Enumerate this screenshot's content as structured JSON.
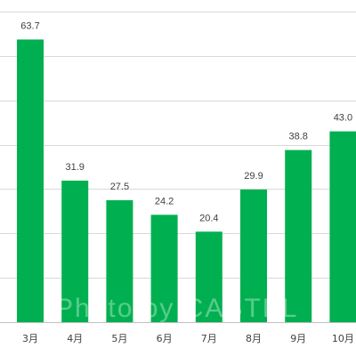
{
  "chart_data": {
    "type": "bar",
    "categories": [
      "3月",
      "4月",
      "5月",
      "6月",
      "7月",
      "8月",
      "9月",
      "10月"
    ],
    "values": [
      63.7,
      31.9,
      27.5,
      24.2,
      20.4,
      29.9,
      38.8,
      43.0
    ],
    "data_labels": [
      "63.7",
      "31.9",
      "27.5",
      "24.2",
      "20.4",
      "29.9",
      "38.8",
      "43.0"
    ],
    "title": "",
    "xlabel": "",
    "ylabel": "",
    "ylim": [
      0,
      70
    ],
    "y_grid_step": 10,
    "grid": true,
    "bar_color": "#00b050"
  },
  "watermark": {
    "text": "Photo by CASTEL"
  }
}
